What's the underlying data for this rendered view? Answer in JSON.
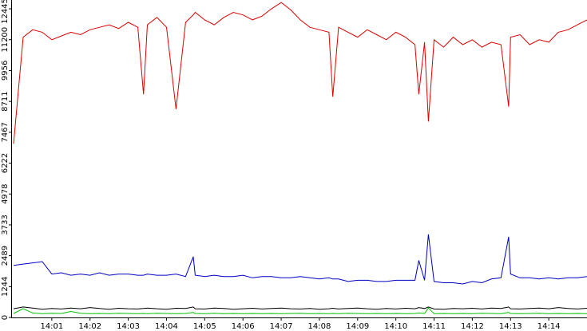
{
  "chart_data": {
    "type": "line",
    "x": [
      0,
      0.25,
      0.5,
      0.75,
      1,
      1.25,
      1.5,
      1.75,
      2,
      2.25,
      2.5,
      2.75,
      3,
      3.25,
      3.4,
      3.5,
      3.75,
      4,
      4.25,
      4.5,
      4.7,
      4.75,
      5,
      5.25,
      5.5,
      5.75,
      6,
      6.25,
      6.5,
      6.75,
      7,
      7.25,
      7.5,
      7.75,
      8,
      8.25,
      8.35,
      8.5,
      8.75,
      9,
      9.25,
      9.5,
      9.75,
      10,
      10.25,
      10.5,
      10.6,
      10.75,
      10.85,
      11,
      11.25,
      11.5,
      11.75,
      12,
      12.25,
      12.5,
      12.75,
      12.95,
      13,
      13.25,
      13.5,
      13.75,
      14,
      14.25,
      14.5,
      14.75,
      15
    ],
    "series": [
      {
        "color": "#e00000",
        "values": [
          7000,
          11300,
          11600,
          11500,
          11200,
          11350,
          11500,
          11400,
          11600,
          11700,
          11800,
          11650,
          11900,
          11700,
          9000,
          11800,
          12100,
          11700,
          8400,
          11900,
          12200,
          12300,
          12000,
          11800,
          12100,
          12300,
          12200,
          12000,
          12150,
          12450,
          12700,
          12400,
          12000,
          11700,
          11600,
          11500,
          8900,
          11700,
          11500,
          11300,
          11600,
          11400,
          11200,
          11500,
          11300,
          11000,
          9000,
          11100,
          7900,
          11200,
          10900,
          11300,
          11000,
          11200,
          10900,
          11100,
          11000,
          8500,
          11300,
          11400,
          11000,
          11200,
          11100,
          11500,
          11600,
          11800,
          12000
        ]
      },
      {
        "color": "#0000c0",
        "values": [
          2100,
          2150,
          2200,
          2250,
          1750,
          1800,
          1700,
          1750,
          1700,
          1800,
          1700,
          1750,
          1750,
          1700,
          1700,
          1750,
          1700,
          1700,
          1750,
          1650,
          2450,
          1700,
          1650,
          1700,
          1650,
          1650,
          1700,
          1600,
          1650,
          1650,
          1600,
          1600,
          1650,
          1600,
          1550,
          1600,
          1550,
          1550,
          1450,
          1500,
          1500,
          1450,
          1450,
          1500,
          1500,
          1500,
          2300,
          1500,
          3350,
          1450,
          1400,
          1400,
          1350,
          1450,
          1400,
          1550,
          1600,
          3250,
          1750,
          1600,
          1600,
          1550,
          1600,
          1550,
          1600,
          1600,
          1650
        ]
      },
      {
        "color": "#000000",
        "values": [
          350,
          420,
          380,
          330,
          360,
          340,
          380,
          350,
          400,
          360,
          330,
          370,
          350,
          340,
          360,
          380,
          350,
          330,
          370,
          360,
          420,
          350,
          340,
          380,
          360,
          330,
          350,
          370,
          340,
          360,
          380,
          350,
          340,
          360,
          330,
          350,
          370,
          340,
          360,
          380,
          350,
          330,
          360,
          340,
          370,
          350,
          400,
          360,
          420,
          340,
          330,
          360,
          350,
          370,
          340,
          380,
          360,
          420,
          350,
          340,
          360,
          380,
          350,
          400,
          360,
          340,
          370
        ]
      },
      {
        "color": "#00c000",
        "values": [
          160,
          350,
          180,
          150,
          170,
          160,
          240,
          170,
          150,
          160,
          150,
          170,
          160,
          150,
          160,
          150,
          170,
          160,
          150,
          160,
          200,
          160,
          150,
          170,
          150,
          160,
          150,
          160,
          150,
          160,
          150,
          160,
          170,
          150,
          160,
          150,
          160,
          150,
          170,
          160,
          150,
          160,
          150,
          160,
          150,
          160,
          180,
          160,
          380,
          150,
          160,
          150,
          160,
          150,
          170,
          160,
          150,
          200,
          160,
          150,
          160,
          170,
          150,
          160,
          150,
          160,
          150
        ]
      }
    ],
    "xlim": [
      0,
      15
    ],
    "xticks": [
      {
        "value": 1,
        "label": "14:01"
      },
      {
        "value": 2,
        "label": "14:02"
      },
      {
        "value": 3,
        "label": "14:03"
      },
      {
        "value": 4,
        "label": "14:04"
      },
      {
        "value": 5,
        "label": "14:05"
      },
      {
        "value": 6,
        "label": "14:06"
      },
      {
        "value": 7,
        "label": "14:07"
      },
      {
        "value": 8,
        "label": "14:08"
      },
      {
        "value": 9,
        "label": "14:09"
      },
      {
        "value": 10,
        "label": "14:10"
      },
      {
        "value": 11,
        "label": "14:11"
      },
      {
        "value": 12,
        "label": "14:12"
      },
      {
        "value": 13,
        "label": "14:13"
      },
      {
        "value": 14,
        "label": "14:14"
      }
    ],
    "ylim": [
      0,
      12800
    ],
    "yticks": [
      0,
      1244,
      2489,
      3733,
      4978,
      6222,
      7467,
      8711,
      9956,
      11200,
      12445
    ]
  }
}
